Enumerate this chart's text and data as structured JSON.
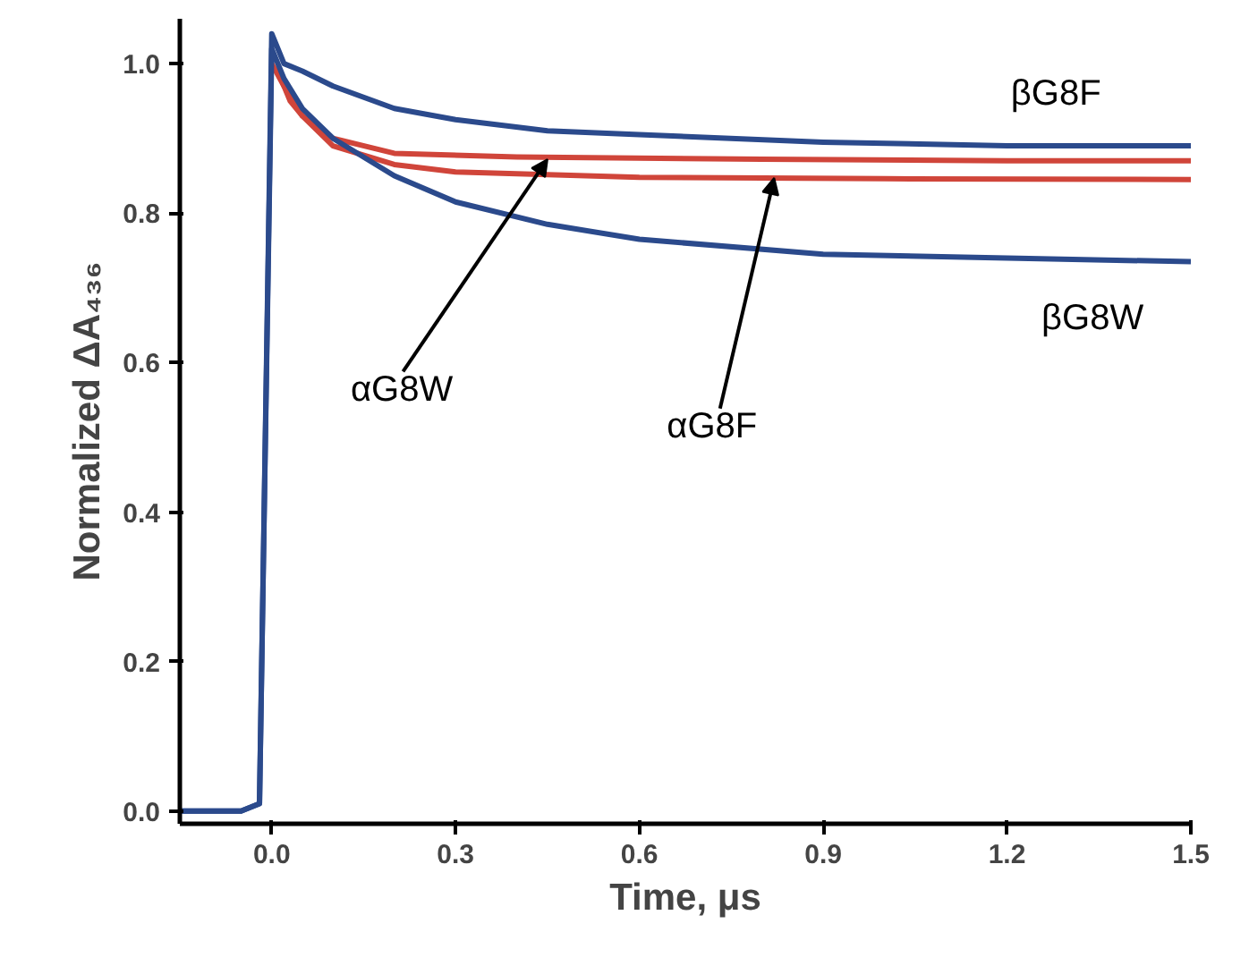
{
  "chart_data": {
    "type": "line",
    "xlabel": "Time, μs",
    "ylabel": "Normalized ΔA₄₃₆",
    "xlim": [
      -0.15,
      1.5
    ],
    "ylim": [
      -0.017,
      1.06
    ],
    "xticks": [
      {
        "value": 0,
        "label": "0.0"
      },
      0.3,
      0.6,
      0.9,
      1.2,
      1.5
    ],
    "yticks": [
      {
        "value": 0,
        "label": "0.0"
      },
      0.2,
      0.4,
      0.6,
      0.8,
      {
        "value": 1,
        "label": "1.0"
      }
    ],
    "grid": false,
    "marker": "none",
    "line_style": "solid",
    "series": [
      {
        "color": "#2b4a8c",
        "x": [
          -0.15,
          -0.1,
          -0.05,
          -0.02,
          0.0,
          0.02,
          0.05,
          0.1,
          0.2,
          0.3,
          0.45,
          0.6,
          0.9,
          1.2,
          1.5
        ],
        "values": [
          0.0,
          0.0,
          0.0,
          0.01,
          1.04,
          1.0,
          0.99,
          0.97,
          0.94,
          0.925,
          0.91,
          0.905,
          0.895,
          0.89,
          0.89
        ]
      },
      {
        "color": "#d0453a",
        "x": [
          0.0,
          0.02,
          0.05,
          0.1,
          0.2,
          0.4,
          0.8,
          1.2,
          1.5
        ],
        "values": [
          1.0,
          0.97,
          0.93,
          0.9,
          0.88,
          0.875,
          0.872,
          0.87,
          0.87
        ]
      },
      {
        "color": "#d0453a",
        "x": [
          0.01,
          0.03,
          0.05,
          0.1,
          0.2,
          0.3,
          0.6,
          1.0,
          1.5
        ],
        "values": [
          0.99,
          0.95,
          0.93,
          0.89,
          0.865,
          0.855,
          0.848,
          0.846,
          0.845
        ]
      },
      {
        "color": "#2b4a8c",
        "x": [
          -0.15,
          -0.1,
          -0.05,
          -0.02,
          0.0,
          0.02,
          0.05,
          0.1,
          0.2,
          0.3,
          0.45,
          0.6,
          0.9,
          1.2,
          1.5
        ],
        "values": [
          0.0,
          0.0,
          0.0,
          0.01,
          1.02,
          0.98,
          0.94,
          0.9,
          0.85,
          0.815,
          0.785,
          0.765,
          0.745,
          0.74,
          0.735
        ]
      }
    ],
    "annotations": [
      {
        "text": "βG8F",
        "x": 1.25,
        "y": 0.89
      },
      {
        "text": "αG8W",
        "x": 0.45,
        "y": 0.872
      },
      {
        "text": "αG8F",
        "x": 0.82,
        "y": 0.847
      },
      {
        "text": "βG8W",
        "x": 1.3,
        "y": 0.74
      }
    ]
  }
}
